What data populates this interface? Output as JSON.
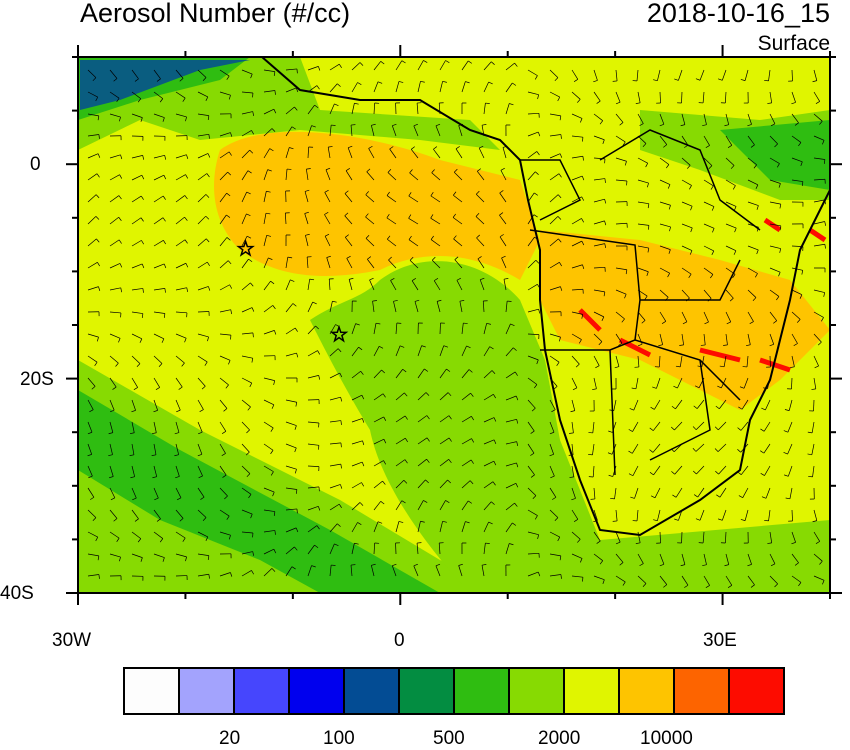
{
  "title": "Aerosol Number (#/cc)",
  "date": "2018-10-16_15",
  "level": "Surface",
  "axes": {
    "lon_ticks": [
      "30W",
      "0",
      "30E"
    ],
    "lat_ticks": [
      "0",
      "20S",
      "40S"
    ],
    "lon_range": [
      -30,
      40
    ],
    "lat_range": [
      -40,
      10
    ]
  },
  "colorbar": {
    "colors": [
      "#fdfdfd",
      "#a3a3fd",
      "#4646fd",
      "#0000ee",
      "#034c94",
      "#038d41",
      "#2fbd11",
      "#87da02",
      "#e0f500",
      "#fec400",
      "#fd6400",
      "#fd0c00"
    ],
    "labels": [
      "20",
      "100",
      "500",
      "2000",
      "10000"
    ]
  },
  "markers": [
    {
      "icon": "star-icon",
      "lon": -14.4,
      "lat": -7.9
    },
    {
      "icon": "star-icon",
      "lon": -5.7,
      "lat": -15.9
    }
  ]
}
